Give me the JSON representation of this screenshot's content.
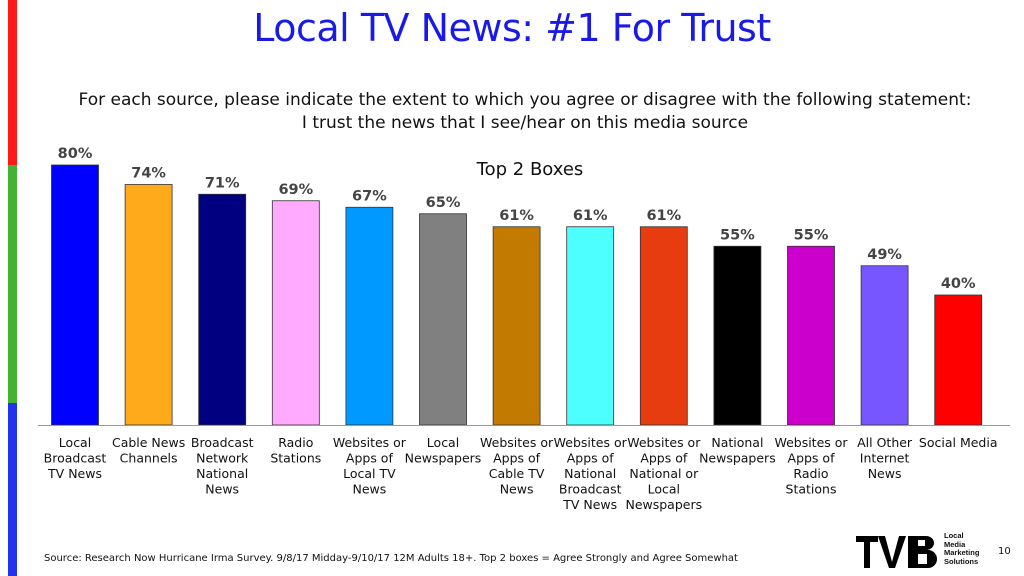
{
  "page": {
    "title": "Local TV News: #1 For Trust",
    "subtitle_line1": "For each source, please indicate the extent to which you agree or disagree with the following statement:",
    "subtitle_line2": "I trust the news that I see/hear on this media source",
    "source": "Source: Research Now Hurricane Irma Survey. 9/8/17 Midday-9/10/17 12M Adults 18+. Top 2 boxes = Agree Strongly and Agree Somewhat",
    "page_number": "10",
    "logo_text": "TVB",
    "logo_tagline": [
      "Local",
      "Media",
      "Marketing",
      "Solutions"
    ],
    "side_bar_colors": [
      "#ff1a1a",
      "#44b333",
      "#2233ee"
    ]
  },
  "chart_data": {
    "type": "bar",
    "title": "Top 2 Boxes",
    "ylim": [
      0,
      100
    ],
    "grid": false,
    "categories": [
      [
        "Local",
        "Broadcast",
        "TV News"
      ],
      [
        "Cable News",
        "Channels"
      ],
      [
        "Broadcast",
        "Network",
        "National",
        "News"
      ],
      [
        "Radio",
        "Stations"
      ],
      [
        "Websites or",
        "Apps of",
        "Local TV",
        "News"
      ],
      [
        "Local",
        "Newspapers"
      ],
      [
        "Websites or",
        "Apps of",
        "Cable TV",
        "News"
      ],
      [
        "Websites or",
        "Apps of",
        "National",
        "Broadcast",
        "TV News"
      ],
      [
        "Websites or",
        "Apps of",
        "National or",
        "Local",
        "Newspapers"
      ],
      [
        "National",
        "Newspapers"
      ],
      [
        "Websites or",
        "Apps of",
        "Radio",
        "Stations"
      ],
      [
        "All Other",
        "Internet",
        "News"
      ],
      [
        "Social Media"
      ]
    ],
    "values": [
      80,
      74,
      71,
      69,
      67,
      65,
      61,
      61,
      61,
      55,
      55,
      49,
      40
    ],
    "value_labels": [
      "80%",
      "74%",
      "71%",
      "69%",
      "67%",
      "65%",
      "61%",
      "61%",
      "61%",
      "55%",
      "55%",
      "49%",
      "40%"
    ],
    "colors": [
      "#0000ff",
      "#ffaa1a",
      "#000080",
      "#ffaaff",
      "#0099ff",
      "#808080",
      "#c27a00",
      "#4dffff",
      "#e63c0f",
      "#000000",
      "#cc00cc",
      "#7755ff",
      "#ff0000"
    ]
  }
}
